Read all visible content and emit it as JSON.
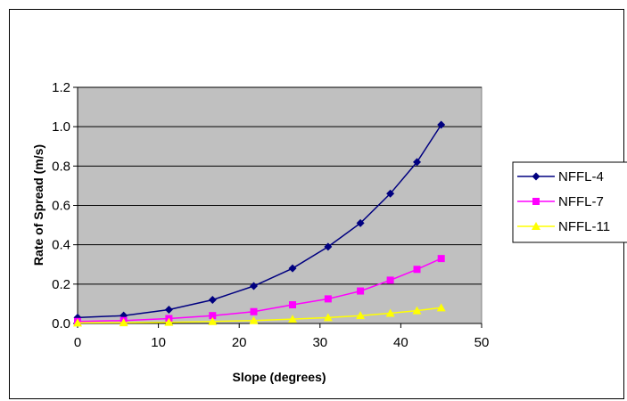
{
  "chart_data": {
    "type": "line",
    "xlabel": "Slope (degrees)",
    "ylabel": "Rate of Spread (m/s)",
    "xlim": [
      0,
      50
    ],
    "ylim": [
      0,
      1.2
    ],
    "x_ticks": [
      "0",
      "10",
      "20",
      "30",
      "40",
      "50"
    ],
    "y_ticks": [
      "0.0",
      "0.2",
      "0.4",
      "0.6",
      "0.8",
      "1.0",
      "1.2"
    ],
    "grid": "horizontal",
    "legend_position": "right",
    "plot_background": "#c0c0c0",
    "series": [
      {
        "name": "NFFL-4",
        "color": "#000080",
        "marker": "diamond",
        "x": [
          0,
          5.7,
          11.3,
          16.7,
          21.8,
          26.6,
          31.0,
          35.0,
          38.7,
          42.0,
          45.0
        ],
        "y": [
          0.03,
          0.04,
          0.07,
          0.12,
          0.19,
          0.28,
          0.39,
          0.51,
          0.66,
          0.82,
          1.01
        ]
      },
      {
        "name": "NFFL-7",
        "color": "#ff00ff",
        "marker": "square",
        "x": [
          0,
          5.7,
          11.3,
          16.7,
          21.8,
          26.6,
          31.0,
          35.0,
          38.7,
          42.0,
          45.0
        ],
        "y": [
          0.01,
          0.015,
          0.025,
          0.04,
          0.06,
          0.095,
          0.125,
          0.165,
          0.22,
          0.275,
          0.33
        ]
      },
      {
        "name": "NFFL-11",
        "color": "#ffff00",
        "marker": "triangle",
        "x": [
          0,
          5.7,
          11.3,
          16.7,
          21.8,
          26.6,
          31.0,
          35.0,
          38.7,
          42.0,
          45.0
        ],
        "y": [
          0.003,
          0.004,
          0.006,
          0.01,
          0.015,
          0.022,
          0.03,
          0.04,
          0.052,
          0.065,
          0.08
        ]
      }
    ]
  }
}
